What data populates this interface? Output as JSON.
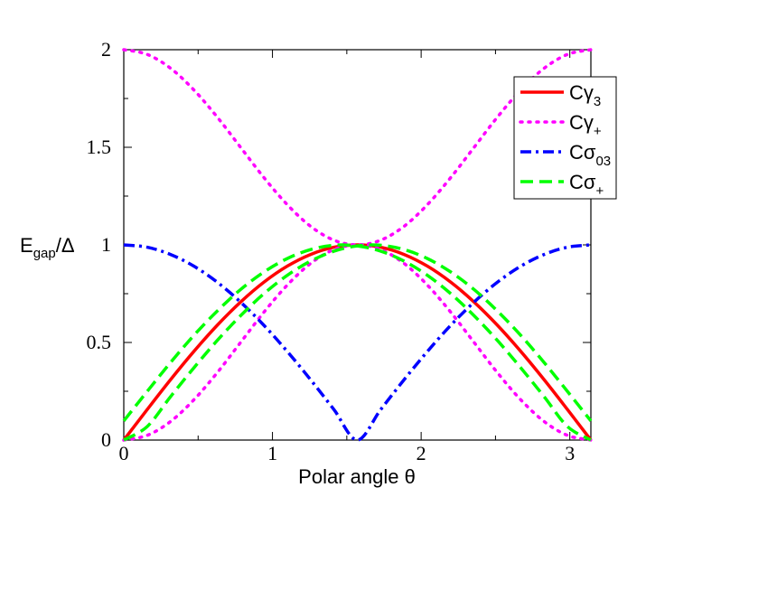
{
  "chart_data": {
    "type": "line",
    "xlabel": "Polar angle θ",
    "ylabel_main": "E",
    "ylabel_sub": "gap",
    "ylabel_tail": "/Δ",
    "xlim": [
      0,
      3.14159
    ],
    "ylim": [
      0,
      2
    ],
    "xticks": [
      0,
      1,
      2,
      3
    ],
    "yticks": [
      0,
      0.5,
      1,
      1.5,
      2
    ],
    "ytick_labels": [
      "0",
      "0.5",
      "1",
      "1.5",
      "2"
    ],
    "grid": false,
    "legend_placement": "top-right",
    "x": [
      0,
      0.1571,
      0.3142,
      0.4712,
      0.6283,
      0.7854,
      0.9425,
      1.0996,
      1.2566,
      1.4137,
      1.5708,
      1.7279,
      1.885,
      2.042,
      2.1991,
      2.3562,
      2.5133,
      2.6704,
      2.8274,
      2.9845,
      3.1416
    ],
    "series": [
      {
        "legend_main": "Cγ",
        "legend_sub": "3",
        "color": "#ff0000",
        "dash": "solid",
        "values": [
          0.0,
          0.156,
          0.309,
          0.454,
          0.588,
          0.707,
          0.809,
          0.891,
          0.951,
          0.988,
          1.0,
          0.988,
          0.951,
          0.891,
          0.809,
          0.707,
          0.588,
          0.454,
          0.309,
          0.156,
          0.0
        ]
      },
      {
        "legend_main": "Cγ",
        "legend_sub": "+",
        "color": "#ff00ff",
        "dash": "dotted",
        "values": [
          0.0,
          0.024,
          0.095,
          0.206,
          0.345,
          0.5,
          0.655,
          0.794,
          0.905,
          0.976,
          1.0,
          0.976,
          0.905,
          0.794,
          0.655,
          0.5,
          0.345,
          0.206,
          0.095,
          0.024,
          0.0
        ],
        "values_mirror": [
          2.0,
          1.976,
          1.905,
          1.794,
          1.655,
          1.5,
          1.345,
          1.206,
          1.095,
          1.024,
          1.0,
          1.024,
          1.095,
          1.206,
          1.345,
          1.5,
          1.655,
          1.794,
          1.905,
          1.976,
          2.0
        ]
      },
      {
        "legend_main": "Cσ",
        "legend_sub": "03",
        "color": "#0000ff",
        "dash": "dashdot",
        "values": [
          1.0,
          0.988,
          0.951,
          0.891,
          0.809,
          0.707,
          0.588,
          0.454,
          0.309,
          0.156,
          0.0,
          0.156,
          0.309,
          0.454,
          0.588,
          0.707,
          0.809,
          0.891,
          0.951,
          0.988,
          1.0
        ]
      },
      {
        "legend_main": "Cσ",
        "legend_sub": "+",
        "color": "#00ff00",
        "dash": "dashed",
        "values": [
          0.098,
          0.249,
          0.397,
          0.536,
          0.661,
          0.771,
          0.861,
          0.93,
          0.976,
          0.998,
          0.995,
          0.968,
          0.917,
          0.844,
          0.75,
          0.637,
          0.51,
          0.37,
          0.222,
          0.069,
          0.0
        ],
        "values_mirror": [
          0.0,
          0.069,
          0.222,
          0.37,
          0.51,
          0.637,
          0.75,
          0.844,
          0.917,
          0.968,
          0.995,
          0.998,
          0.976,
          0.93,
          0.861,
          0.771,
          0.661,
          0.536,
          0.397,
          0.249,
          0.098
        ]
      }
    ]
  }
}
